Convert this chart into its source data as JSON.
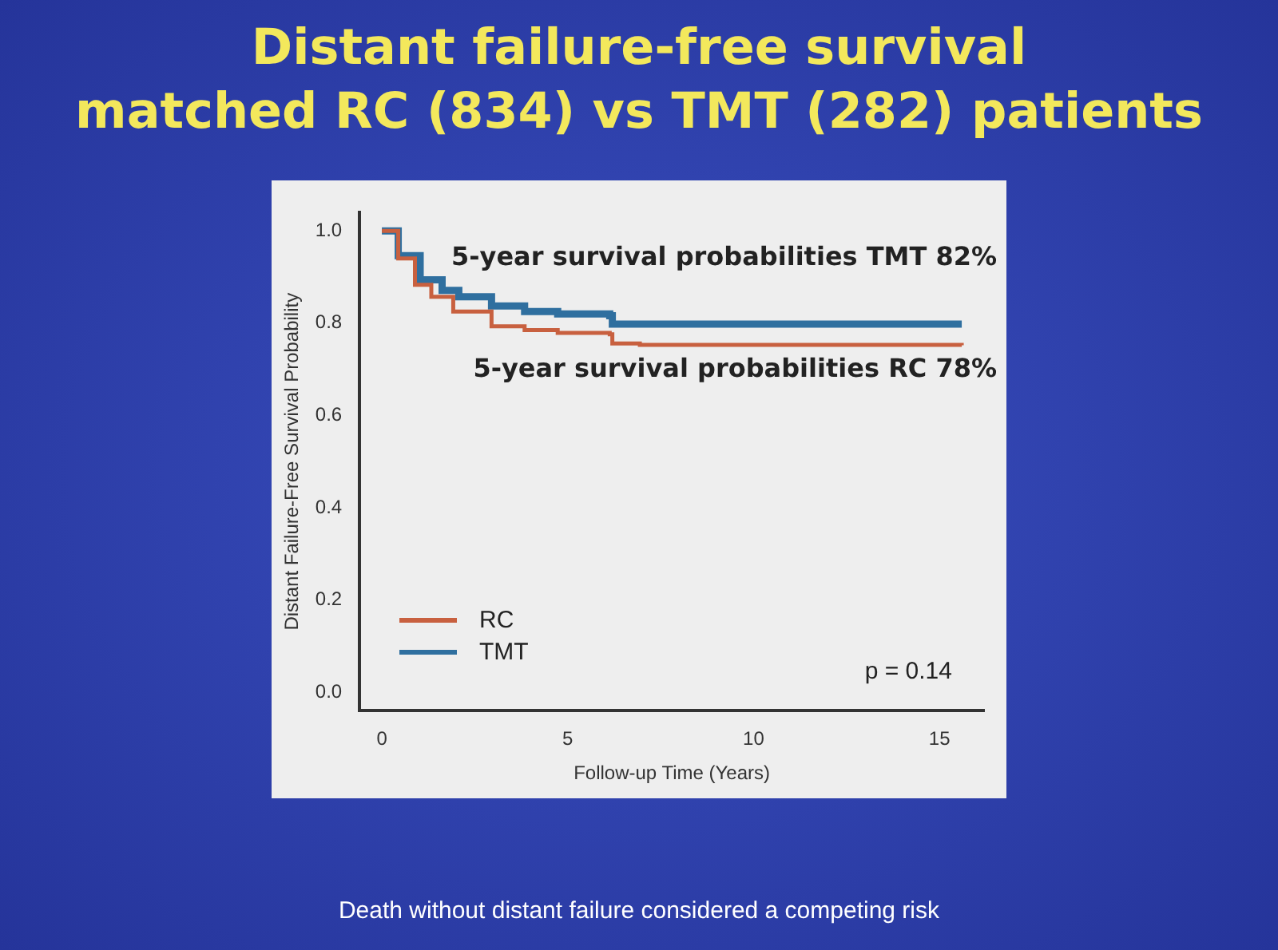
{
  "chart_data": {
    "type": "step",
    "title": "Distant failure-free survival\nmatched RC  (834) vs TMT  (282) patients",
    "xlabel": "Follow-up Time (Years)",
    "ylabel": "Distant Failure-Free Survival Probability",
    "series": [
      {
        "name": "RC",
        "color": "#c8603f",
        "x": [
          0,
          0.44,
          0.89,
          1.33,
          1.92,
          2.95,
          3.84,
          4.73,
          6.13,
          6.2,
          6.94,
          15.6
        ],
        "values": [
          1.0,
          0.94,
          0.883,
          0.857,
          0.825,
          0.793,
          0.785,
          0.779,
          0.776,
          0.756,
          0.753,
          0.752
        ]
      },
      {
        "name": "TMT",
        "color": "#2f6f9f",
        "x": [
          0,
          0.44,
          1.03,
          1.62,
          2.07,
          2.95,
          3.84,
          4.73,
          6.13,
          6.2,
          15.6
        ],
        "values": [
          1.0,
          0.946,
          0.894,
          0.871,
          0.857,
          0.837,
          0.825,
          0.82,
          0.816,
          0.798,
          0.798
        ]
      }
    ],
    "xlim": [
      -0.6,
      16.2
    ],
    "xticks": [
      0,
      5,
      10,
      15
    ],
    "ylim": [
      -0.04,
      1.04
    ],
    "yticks": [
      {
        "value": 0,
        "label": "0.0"
      },
      {
        "value": 0.2,
        "label": "0.2"
      },
      {
        "value": 0.4,
        "label": "0.4"
      },
      {
        "value": 0.6,
        "label": "0.6"
      },
      {
        "value": 0.8,
        "label": "0.8"
      },
      {
        "value": 1,
        "label": "1.0"
      }
    ],
    "legend": "bottom left",
    "grid": false,
    "annotations": [
      "5-year survival probabilities TMT 82%",
      "5-year survival probabilities RC 78%",
      "p = 0.14",
      "Death without distant failure considered a competing risk"
    ]
  }
}
